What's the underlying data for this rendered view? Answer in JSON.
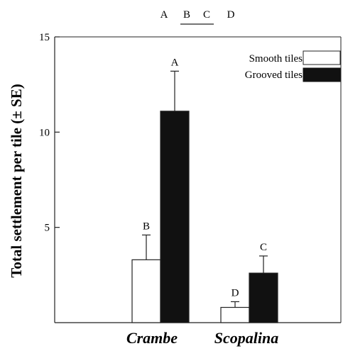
{
  "chart_data": {
    "type": "bar",
    "ylabel": "Total settlement per tile (± SE)",
    "xlabel": "",
    "ylim": [
      0,
      15
    ],
    "yticks": [
      5,
      10,
      15
    ],
    "categories": [
      "Crambe",
      "Scopalina"
    ],
    "series": [
      {
        "name": "Smooth tiles",
        "color": "#ffffff",
        "values": [
          3.3,
          0.8
        ],
        "se": [
          1.3,
          0.3
        ],
        "letters": [
          "B",
          "D"
        ]
      },
      {
        "name": "Grooved tiles",
        "color": "#111111",
        "values": [
          11.1,
          2.6
        ],
        "se": [
          2.1,
          0.9
        ],
        "letters": [
          "A",
          "C"
        ]
      }
    ],
    "legend": {
      "position": "top-right"
    },
    "significance_key": {
      "letters": [
        "A",
        "B",
        "C",
        "D"
      ],
      "underlined_group": [
        "B",
        "C"
      ]
    }
  }
}
